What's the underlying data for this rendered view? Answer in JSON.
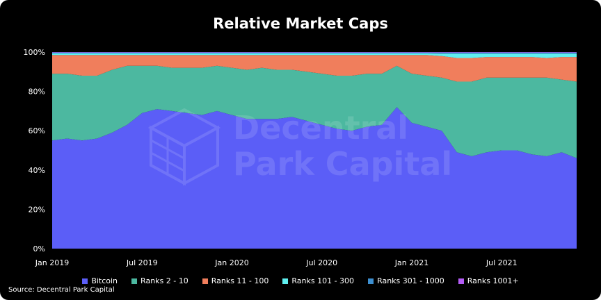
{
  "chart_data": {
    "type": "area",
    "stacked": true,
    "normalized": true,
    "title": "Relative Market Caps",
    "x": [
      "2019-01",
      "2019-02",
      "2019-03",
      "2019-04",
      "2019-05",
      "2019-06",
      "2019-07",
      "2019-08",
      "2019-09",
      "2019-10",
      "2019-11",
      "2019-12",
      "2020-01",
      "2020-02",
      "2020-03",
      "2020-04",
      "2020-05",
      "2020-06",
      "2020-07",
      "2020-08",
      "2020-09",
      "2020-10",
      "2020-11",
      "2020-12",
      "2021-01",
      "2021-02",
      "2021-03",
      "2021-04",
      "2021-05",
      "2021-06",
      "2021-07",
      "2021-08",
      "2021-09",
      "2021-10",
      "2021-11",
      "2021-12"
    ],
    "x_tick_labels": [
      "Jan 2019",
      "Jul 2019",
      "Jan 2020",
      "Jul 2020",
      "Jan 2021",
      "Jul 2021"
    ],
    "y_tick_labels": [
      "0%",
      "20%",
      "40%",
      "60%",
      "80%",
      "100%"
    ],
    "ylim": [
      0,
      100
    ],
    "series": [
      {
        "name": "Bitcoin",
        "color": "#5b5ef7",
        "values": [
          55,
          56,
          55,
          56,
          59,
          63,
          69,
          71,
          70,
          69,
          68,
          70,
          68,
          66,
          66,
          66,
          67,
          65,
          63,
          61,
          60,
          62,
          63,
          72,
          64,
          62,
          60,
          49,
          47,
          49,
          50,
          50,
          48,
          47,
          49,
          46
        ]
      },
      {
        "name": "Ranks 2 - 10",
        "color": "#4cb8a0",
        "values": [
          34,
          33,
          33,
          32,
          32,
          30,
          24,
          22,
          22,
          23,
          24,
          23,
          24,
          25,
          26,
          25,
          24,
          25,
          26,
          27,
          28,
          27,
          26,
          21,
          25,
          26,
          27,
          36,
          38,
          38,
          37,
          37,
          39,
          40,
          37,
          39
        ]
      },
      {
        "name": "Ranks 11 - 100",
        "color": "#f07e5c",
        "values": [
          9.5,
          9.5,
          10.5,
          10.5,
          7.5,
          5.5,
          5.5,
          5.5,
          6.5,
          6.5,
          6.5,
          5.5,
          6.5,
          7.5,
          6.5,
          7.5,
          7.5,
          8.5,
          9.5,
          10.5,
          10.5,
          9.5,
          9.5,
          5.5,
          9.5,
          10.5,
          11,
          12,
          12,
          10.5,
          10.5,
          10.5,
          10.5,
          10,
          11.5,
          12.5
        ]
      },
      {
        "name": "Ranks 101 - 300",
        "color": "#5ff0f0",
        "values": [
          0.8,
          0.8,
          0.8,
          0.8,
          0.8,
          0.8,
          0.8,
          0.8,
          0.8,
          0.8,
          0.8,
          0.8,
          0.8,
          0.8,
          0.8,
          0.8,
          0.8,
          0.8,
          0.8,
          0.8,
          0.8,
          0.8,
          0.8,
          0.8,
          0.8,
          0.8,
          1.2,
          2.2,
          2.2,
          1.7,
          1.7,
          1.7,
          1.7,
          2.2,
          1.7,
          1.7
        ]
      },
      {
        "name": "Ranks 301 - 1000",
        "color": "#3d8fd0",
        "values": [
          0.5,
          0.5,
          0.5,
          0.5,
          0.5,
          0.5,
          0.5,
          0.5,
          0.5,
          0.5,
          0.5,
          0.5,
          0.5,
          0.5,
          0.5,
          0.5,
          0.5,
          0.5,
          0.5,
          0.5,
          0.5,
          0.5,
          0.5,
          0.5,
          0.5,
          0.5,
          0.6,
          0.6,
          0.6,
          0.6,
          0.6,
          0.6,
          0.6,
          0.6,
          0.6,
          0.6
        ]
      },
      {
        "name": "Ranks 1001+",
        "color": "#b45cf5",
        "values": [
          0.2,
          0.2,
          0.2,
          0.2,
          0.2,
          0.2,
          0.2,
          0.2,
          0.2,
          0.2,
          0.2,
          0.2,
          0.2,
          0.2,
          0.2,
          0.2,
          0.2,
          0.2,
          0.2,
          0.2,
          0.2,
          0.2,
          0.2,
          0.2,
          0.2,
          0.2,
          0.2,
          0.2,
          0.2,
          0.2,
          0.2,
          0.2,
          0.2,
          0.2,
          0.2,
          0.2
        ]
      }
    ],
    "legend_position": "bottom",
    "grid": false,
    "source": "Source: Decentral Park Capital",
    "watermark": "Decentral Park Capital"
  }
}
